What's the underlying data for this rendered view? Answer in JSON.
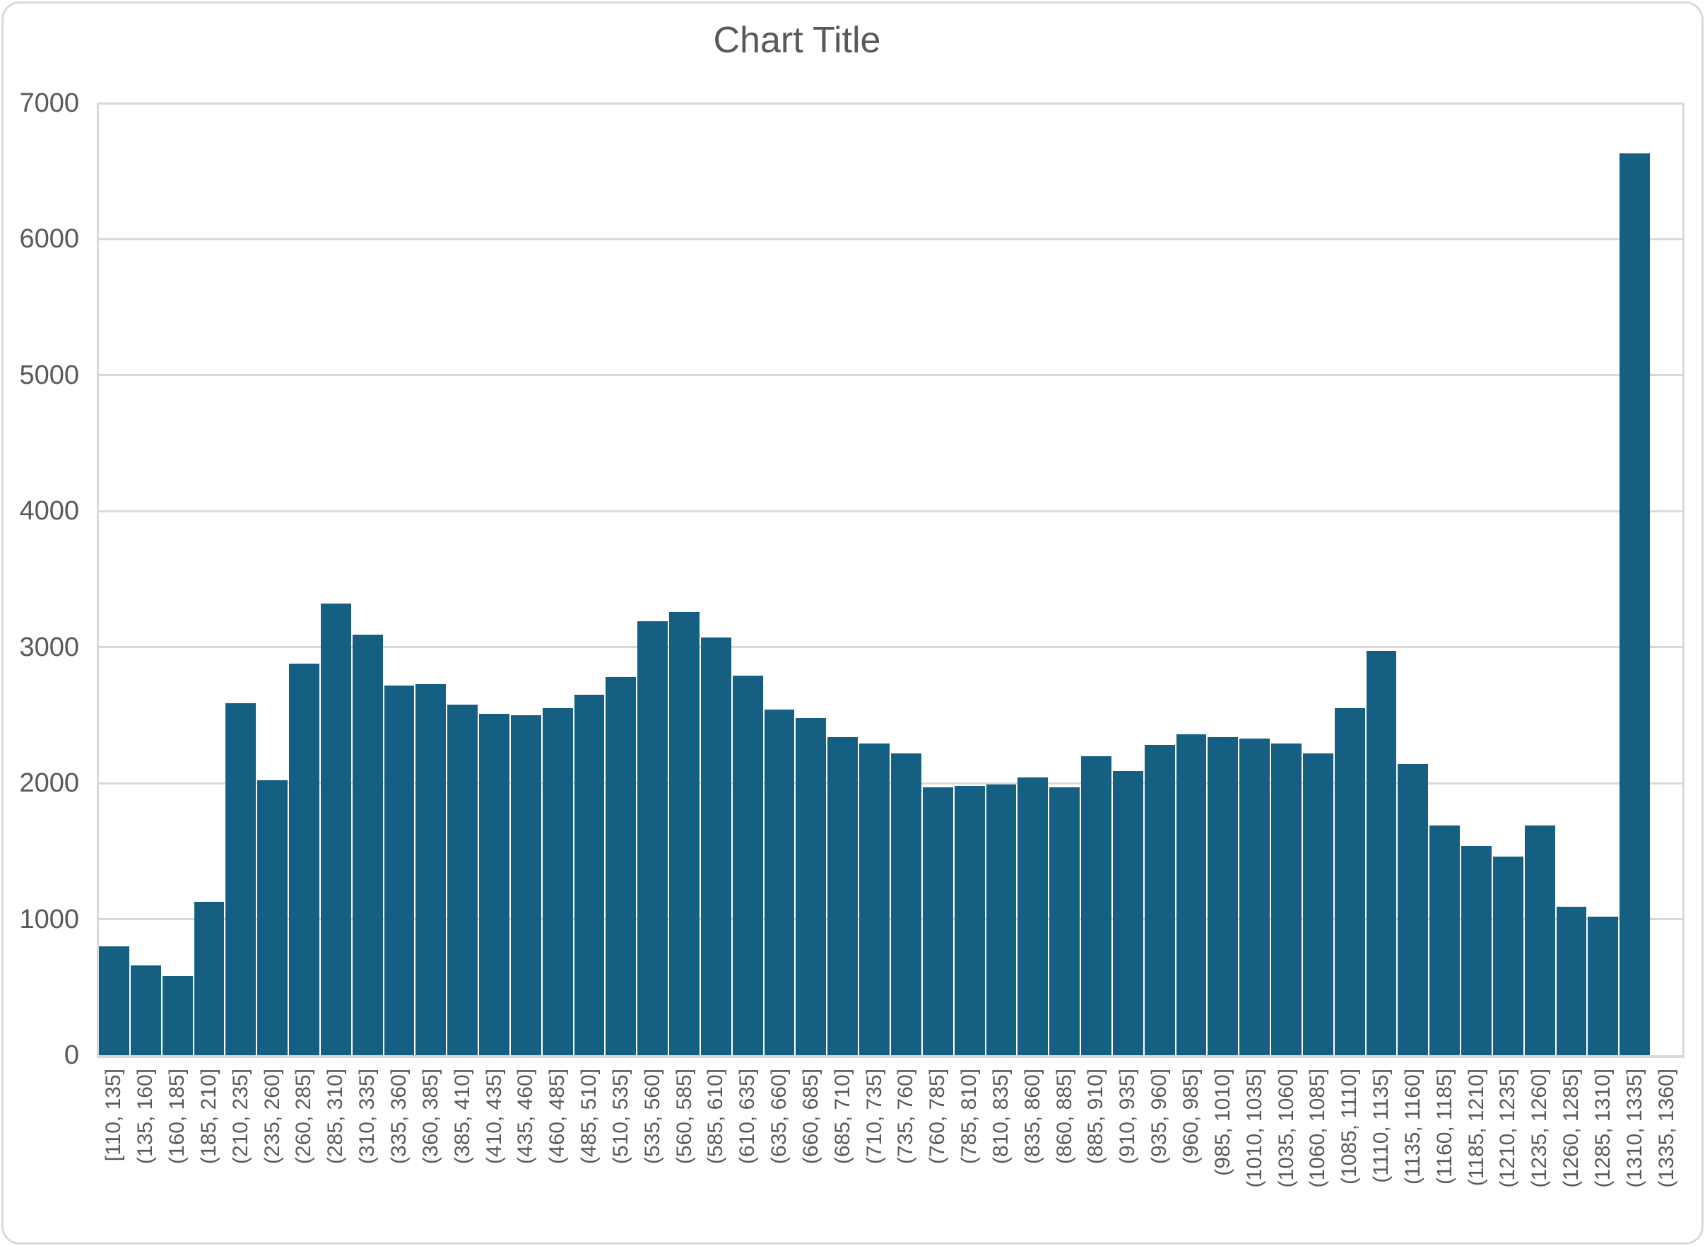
{
  "chart_data": {
    "type": "bar",
    "subtype": "histogram",
    "title": "Chart Title",
    "xlabel": "",
    "ylabel": "",
    "ylim": [
      0,
      7000
    ],
    "y_ticks": [
      "0",
      "1000",
      "2000",
      "3000",
      "4000",
      "5000",
      "6000",
      "7000"
    ],
    "grid": "horizontal",
    "legend_position": "none",
    "categories": [
      "[110, 135]",
      "(135, 160]",
      "(160, 185]",
      "(185, 210]",
      "(210, 235]",
      "(235, 260]",
      "(260, 285]",
      "(285, 310]",
      "(310, 335]",
      "(335, 360]",
      "(360, 385]",
      "(385, 410]",
      "(410, 435]",
      "(435, 460]",
      "(460, 485]",
      "(485, 510]",
      "(510, 535]",
      "(535, 560]",
      "(560, 585]",
      "(585, 610]",
      "(610, 635]",
      "(635, 660]",
      "(660, 685]",
      "(685, 710]",
      "(710, 735]",
      "(735, 760]",
      "(760, 785]",
      "(785, 810]",
      "(810, 835]",
      "(835, 860]",
      "(860, 885]",
      "(885, 910]",
      "(910, 935]",
      "(935, 960]",
      "(960, 985]",
      "(985, 1010]",
      "(1010, 1035]",
      "(1035, 1060]",
      "(1060, 1085]",
      "(1085, 1110]",
      "(1110, 1135]",
      "(1135, 1160]",
      "(1160, 1185]",
      "(1185, 1210]",
      "(1210, 1235]",
      "(1235, 1260]",
      "(1260, 1285]",
      "(1285, 1310]",
      "(1310, 1335]",
      "(1335, 1360]"
    ],
    "values": [
      800,
      660,
      580,
      1130,
      2590,
      2020,
      2880,
      3320,
      3090,
      2720,
      2730,
      2580,
      2510,
      2500,
      2550,
      2650,
      2780,
      3190,
      3260,
      3070,
      2790,
      2540,
      2480,
      2340,
      2290,
      2220,
      1970,
      1980,
      1990,
      2040,
      1970,
      2200,
      2090,
      2280,
      2360,
      2340,
      2330,
      2290,
      2220,
      2550,
      2970,
      2140,
      1690,
      1540,
      1460,
      1690,
      1090,
      1020,
      6630,
      0
    ],
    "colors": {
      "bar": "#156082",
      "gridline": "#d9d9d9",
      "axis_line": "#d9d9d9",
      "text": "#595959"
    }
  }
}
